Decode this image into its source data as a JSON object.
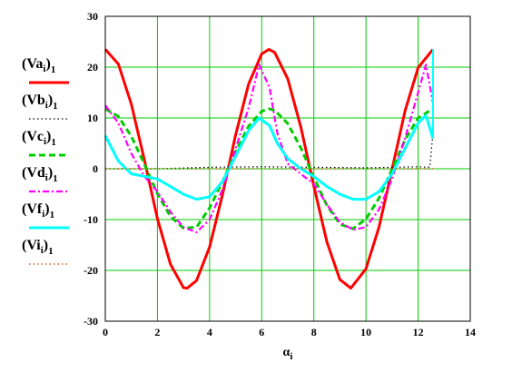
{
  "chart_data": {
    "type": "line",
    "title": "",
    "xlabel": "α_i",
    "ylabel": "",
    "xlim": [
      0,
      14
    ],
    "ylim": [
      -30,
      30
    ],
    "xticks": [
      0,
      2,
      4,
      6,
      8,
      10,
      12,
      14
    ],
    "yticks": [
      -30,
      -20,
      -10,
      0,
      10,
      20,
      30
    ],
    "grid": true,
    "legend_position": "left",
    "series": [
      {
        "legend": "(Va_i)_1",
        "color": "#ff0000",
        "style": "solid",
        "x": [
          0,
          0.5,
          1,
          1.5,
          2,
          2.5,
          3,
          3.14,
          3.5,
          4,
          4.5,
          5,
          5.5,
          6,
          6.28,
          6.5,
          7,
          7.5,
          8,
          8.5,
          9,
          9.42,
          10,
          10.5,
          11,
          11.5,
          12,
          12.57
        ],
        "y": [
          23.5,
          20.6,
          12.7,
          1.7,
          -9.8,
          -18.8,
          -23.4,
          -23.5,
          -22,
          -15.4,
          -5.0,
          6.7,
          16.7,
          22.6,
          23.5,
          22.9,
          17.7,
          8.2,
          -3.4,
          -14.4,
          -21.8,
          -23.5,
          -19.7,
          -11.5,
          -0.1,
          11.4,
          19.9,
          23.5
        ]
      },
      {
        "legend": "(Vb_i)_1",
        "color": "#000000",
        "style": "dotted",
        "x": [
          0,
          2,
          4,
          6,
          8,
          10,
          12,
          12.45,
          12.57
        ],
        "y": [
          0,
          0,
          0.3,
          0.4,
          0.3,
          0.2,
          0.4,
          0.3,
          7
        ]
      },
      {
        "legend": "(Vc_i)_1",
        "color": "#00cc00",
        "style": "dashed",
        "x": [
          0,
          0.5,
          1,
          1.5,
          2,
          2.5,
          3,
          3.5,
          4,
          4.5,
          5,
          5.5,
          6,
          6.28,
          6.5,
          7,
          7.5,
          8,
          8.5,
          9,
          9.5,
          10,
          10.5,
          11,
          11.5,
          12,
          12.57
        ],
        "y": [
          11.8,
          10.3,
          6.4,
          0.9,
          -4.9,
          -9.4,
          -11.7,
          -11.5,
          -7.7,
          -2.5,
          3.4,
          8.4,
          11.3,
          11.8,
          11.5,
          8.9,
          4.1,
          -1.7,
          -7.2,
          -10.9,
          -11.8,
          -9.9,
          -5.8,
          -0.1,
          5.7,
          10.0,
          11.8
        ]
      },
      {
        "legend": "(Vd_i)_1",
        "color": "#ff00ff",
        "style": "dashdot",
        "x": [
          0,
          0.5,
          1,
          1.5,
          2,
          2.5,
          3,
          3.5,
          4,
          4.5,
          5,
          5.5,
          5.9,
          6.3,
          6.6,
          7,
          7.5,
          8,
          8.5,
          9,
          9.5,
          10,
          10.5,
          11,
          11.5,
          12,
          12.3,
          12.57
        ],
        "y": [
          12.5,
          9,
          3,
          -1.5,
          -4.5,
          -8.5,
          -11.5,
          -12.5,
          -10,
          -4,
          4,
          12,
          20.5,
          16,
          7,
          1,
          -1,
          -3,
          -7,
          -10.5,
          -12,
          -11.5,
          -8,
          -2,
          6,
          15,
          20.5,
          13
        ]
      },
      {
        "legend": "(Vf_i)_1",
        "color": "#00ffff",
        "style": "solid",
        "x": [
          0,
          0.5,
          1,
          1.5,
          2,
          2.5,
          3,
          3.5,
          4,
          4.5,
          5,
          5.5,
          5.9,
          6.3,
          6.6,
          7,
          7.5,
          8,
          8.5,
          9,
          9.5,
          10,
          10.5,
          11,
          11.5,
          12,
          12.3,
          12.57
        ],
        "y": [
          6.5,
          1.5,
          -1,
          -1.5,
          -2,
          -3.5,
          -5,
          -6,
          -5.5,
          -2.5,
          2.5,
          7.5,
          10,
          8.5,
          5,
          2,
          0,
          -1.5,
          -3.5,
          -5,
          -6,
          -6,
          -4.5,
          -1,
          4,
          9,
          10.5,
          6
        ]
      },
      {
        "legend": "(Vi_i)_1",
        "color": "#cc4400",
        "style": "dotted",
        "x": [
          0,
          12.57
        ],
        "y": [
          0,
          0
        ]
      }
    ],
    "extra_marks": [
      {
        "color": "#00ffff",
        "x": 12.57,
        "y_from": 6,
        "y_to": 23.5
      }
    ]
  }
}
